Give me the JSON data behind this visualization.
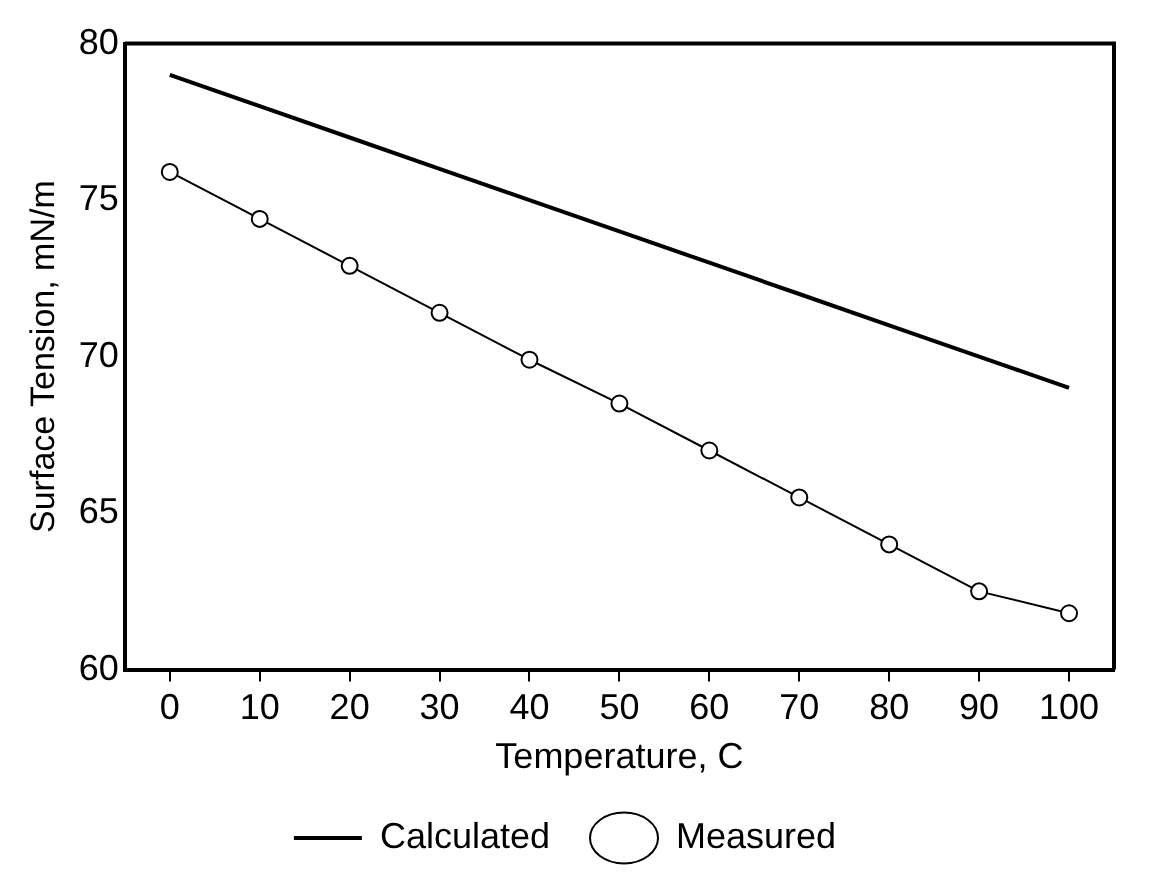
{
  "chart_data": {
    "type": "line",
    "xlabel": "Temperature, C",
    "ylabel": "Surface Tension, mN/m",
    "x": [
      0,
      10,
      20,
      30,
      40,
      50,
      60,
      70,
      80,
      90,
      100
    ],
    "series": [
      {
        "name": "Calculated",
        "color": "#000000",
        "marker": "none",
        "values": [
          79,
          78,
          77,
          76,
          75,
          74,
          73,
          72,
          71,
          70,
          69
        ]
      },
      {
        "name": "Measured",
        "color": "#000000",
        "marker": "circle",
        "values": [
          75.9,
          74.4,
          72.9,
          71.4,
          69.9,
          68.5,
          67.0,
          65.5,
          64.0,
          62.5,
          61.8
        ]
      }
    ],
    "xlim": [
      -5,
      105
    ],
    "xticks": [
      0,
      10,
      20,
      30,
      40,
      50,
      60,
      70,
      80,
      90,
      100
    ],
    "ylim": [
      60,
      80
    ],
    "yticks": [
      60,
      65,
      70,
      75,
      80
    ],
    "grid": false,
    "legend": "bottom"
  }
}
